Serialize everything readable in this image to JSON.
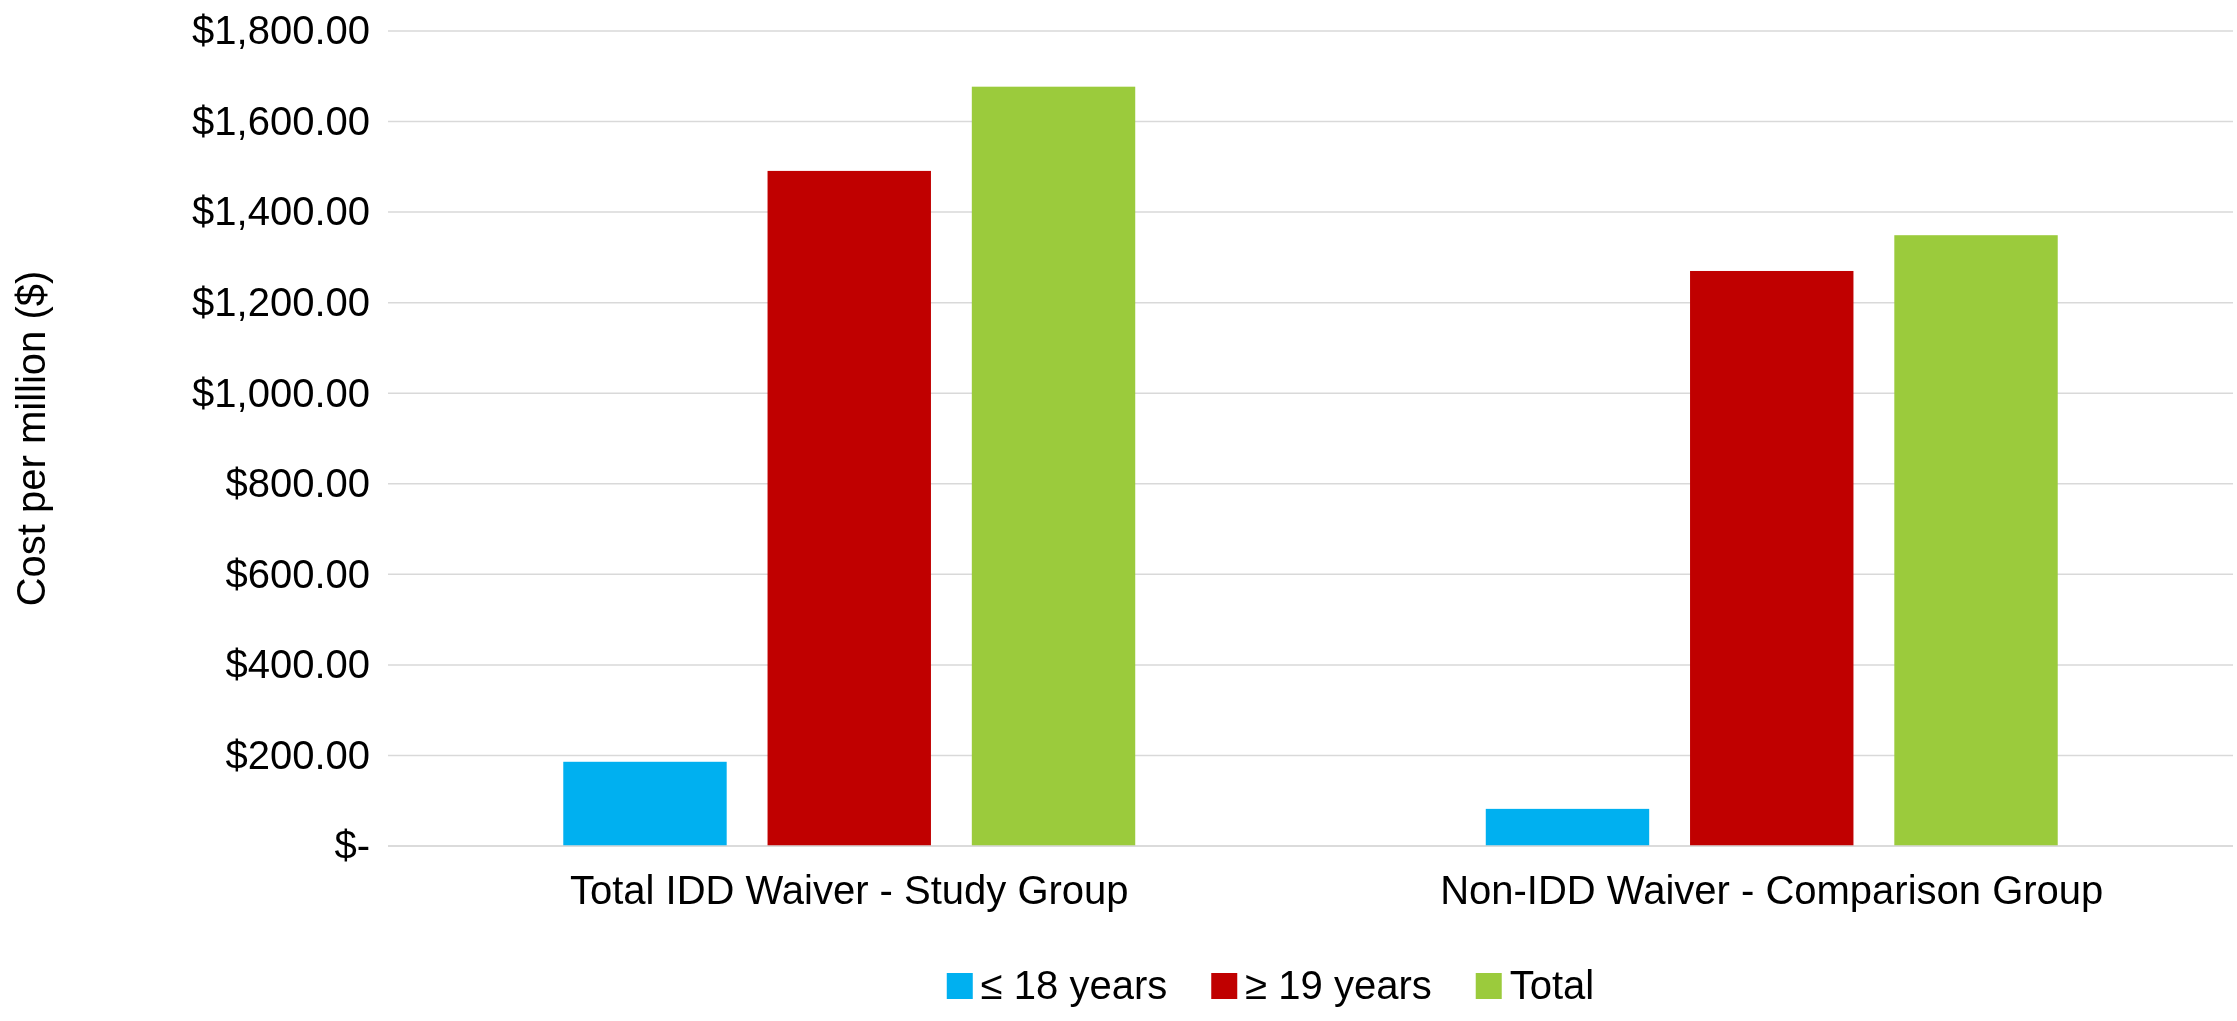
{
  "chart_data": {
    "type": "bar",
    "ylabel": "Cost per million ($)",
    "categories": [
      "Total IDD Waiver - Study Group",
      "Non-IDD Waiver - Comparison Group"
    ],
    "series": [
      {
        "name": "≤ 18 years",
        "color": "#00b0f0",
        "values": [
          186,
          82
        ]
      },
      {
        "name": "≥ 19 years",
        "color": "#c00000",
        "values": [
          1491,
          1270
        ]
      },
      {
        "name": "Total",
        "color": "#9bcb3c",
        "values": [
          1677,
          1349
        ]
      }
    ],
    "ylim": [
      0,
      1800
    ],
    "yticks": [
      {
        "value": 0,
        "label": "$-"
      },
      {
        "value": 200,
        "label": "$200.00"
      },
      {
        "value": 400,
        "label": "$400.00"
      },
      {
        "value": 600,
        "label": "$600.00"
      },
      {
        "value": 800,
        "label": "$800.00"
      },
      {
        "value": 1000,
        "label": "$1,000.00"
      },
      {
        "value": 1200,
        "label": "$1,200.00"
      },
      {
        "value": 1400,
        "label": "$1,400.00"
      },
      {
        "value": 1600,
        "label": "$1,600.00"
      },
      {
        "value": 1800,
        "label": "$1,800.00"
      }
    ],
    "grid": "y",
    "legend": "bottom"
  }
}
